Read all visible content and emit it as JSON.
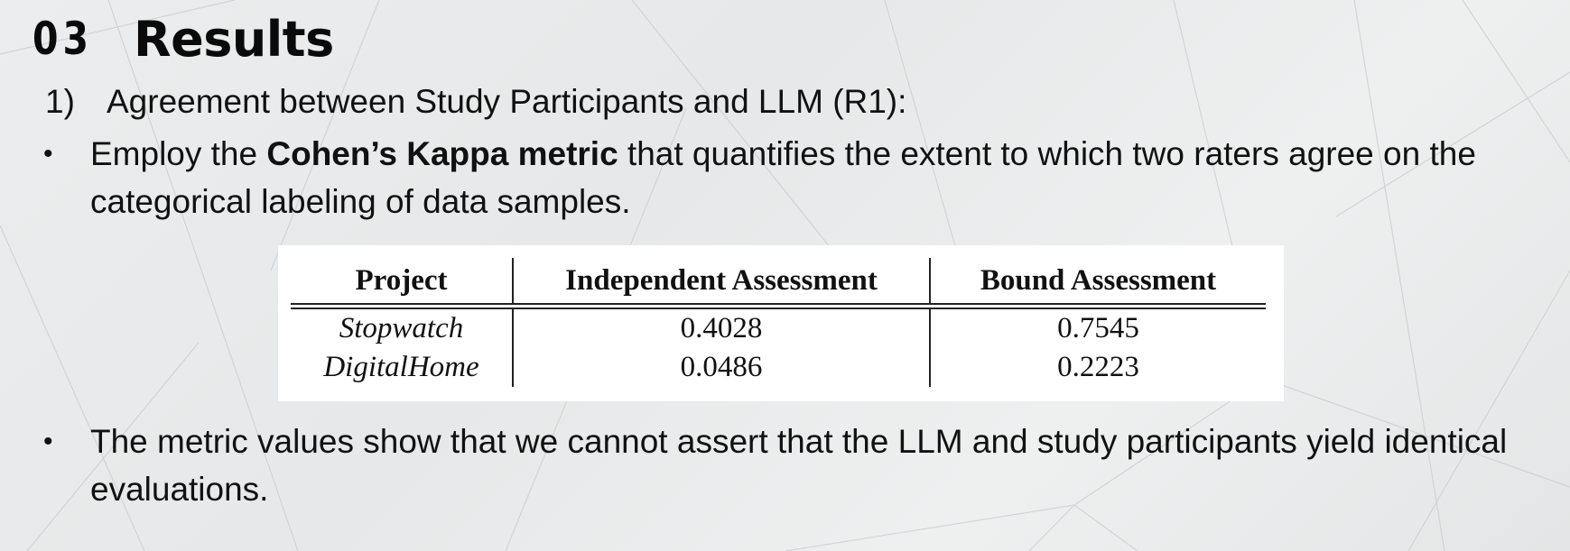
{
  "slide": {
    "section_number": "03",
    "title": "Results",
    "item": {
      "number": "1)",
      "text": "Agreement between Study Participants and LLM (R1):"
    },
    "bullets": [
      {
        "pre": "Employ the ",
        "bold": "Cohen’s Kappa metric",
        "post": " that quantifies the extent to which two raters agree on the categorical labeling of data samples."
      },
      {
        "text": "The metric values show that we cannot assert that the LLM and study participants yield identical evaluations."
      }
    ],
    "bullet_glyph": "•"
  },
  "table": {
    "headers": [
      "Project",
      "Independent Assessment",
      "Bound Assessment"
    ],
    "rows": [
      [
        "Stopwatch",
        "0.4028",
        "0.7545"
      ],
      [
        "DigitalHome",
        "0.0486",
        "0.2223"
      ]
    ]
  }
}
